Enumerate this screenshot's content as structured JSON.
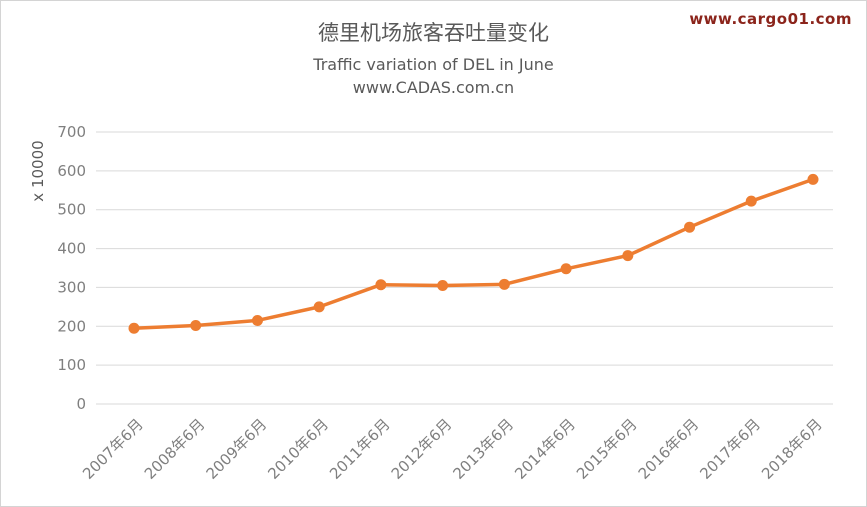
{
  "watermark": {
    "text": "www.cargo01.com",
    "color": "#8b241b"
  },
  "chart_data": {
    "type": "line",
    "title": "德里机场旅客吞吐量变化",
    "subtitle": "Traffic variation of DEL in June",
    "source": "www.CADAS.com.cn",
    "ylabel": "x 10000",
    "xlabel": "",
    "categories": [
      "2007年6月",
      "2008年6月",
      "2009年6月",
      "2010年6月",
      "2011年6月",
      "2012年6月",
      "2013年6月",
      "2014年6月",
      "2015年6月",
      "2016年6月",
      "2017年6月",
      "2018年6月"
    ],
    "values": [
      195,
      202,
      215,
      250,
      307,
      305,
      308,
      348,
      382,
      455,
      522,
      578
    ],
    "ylim": [
      0,
      700
    ],
    "ytick_step": 100,
    "grid": true,
    "legend": false,
    "line_color": "#ED7D31",
    "marker_color": "#ED7D31",
    "grid_color": "#d9d9d9",
    "tick_label_color": "#7f7f7f",
    "axis_title_color": "#595959"
  }
}
